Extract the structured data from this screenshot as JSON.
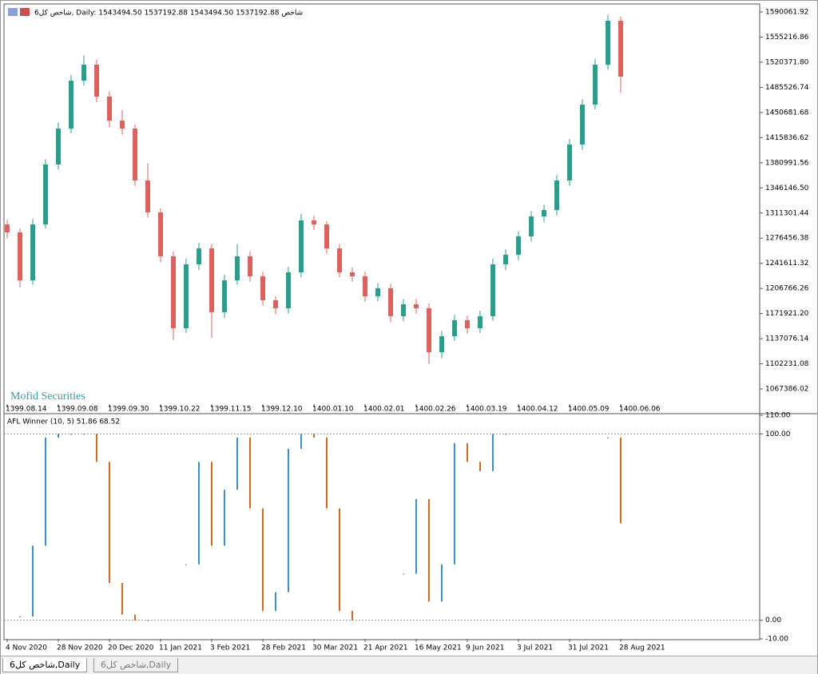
{
  "chart_data": [
    {
      "type": "candlestick",
      "title": "6شاخص کل, Daily:  1543494.50 1537192.88 1543494.50 1537192.88  شاخص",
      "annotation": "Mofid Securities",
      "up_color": "#26a08a",
      "down_color": "#e0605e",
      "categories": [
        "1399.08.14",
        null,
        null,
        null,
        "1399.09.08",
        null,
        null,
        null,
        "1399.09.30",
        null,
        null,
        null,
        "1399.10.22",
        null,
        null,
        null,
        "1399.11.15",
        null,
        null,
        null,
        "1399.12.10",
        null,
        null,
        null,
        "1400.01.10",
        null,
        null,
        null,
        "1400.02.01",
        null,
        null,
        null,
        "1400.02.26",
        null,
        null,
        null,
        "1400.03.19",
        null,
        null,
        null,
        "1400.04.12",
        null,
        null,
        null,
        "1400.05.09",
        null,
        null,
        null,
        "1400.06.06"
      ],
      "open": [
        1295500,
        1284500,
        1218000,
        1295500,
        1378600,
        1428400,
        1494800,
        1517000,
        1472700,
        1439500,
        1428400,
        1356400,
        1312200,
        1251300,
        1151600,
        1240200,
        1262300,
        1173800,
        1218000,
        1251300,
        1223600,
        1190400,
        1179300,
        1229100,
        1301100,
        1295500,
        1262300,
        1229100,
        1223600,
        1195900,
        1207000,
        1168200,
        1184800,
        1179300,
        1118400,
        1140500,
        1162700,
        1151600,
        1168200,
        1240200,
        1253500,
        1278900,
        1306600,
        1315500,
        1356400,
        1406300,
        1461600,
        1517000,
        1577900
      ],
      "high": [
        1302000,
        1290000,
        1303000,
        1386000,
        1437000,
        1503000,
        1530000,
        1524000,
        1480000,
        1454000,
        1434000,
        1380000,
        1318000,
        1258000,
        1248000,
        1270000,
        1268000,
        1226000,
        1268000,
        1258000,
        1230000,
        1196000,
        1237000,
        1310000,
        1308000,
        1300000,
        1268000,
        1236000,
        1230000,
        1214000,
        1213000,
        1192000,
        1192000,
        1186000,
        1148000,
        1170000,
        1169000,
        1176000,
        1248000,
        1261000,
        1286000,
        1314000,
        1323000,
        1364000,
        1414000,
        1469000,
        1525000,
        1586000,
        1584000
      ],
      "low": [
        1276000,
        1208000,
        1212000,
        1290000,
        1372000,
        1422000,
        1488000,
        1465000,
        1430000,
        1420000,
        1349000,
        1305000,
        1243000,
        1135000,
        1145000,
        1232000,
        1138000,
        1166000,
        1212000,
        1216000,
        1183000,
        1171000,
        1172000,
        1222000,
        1288000,
        1255000,
        1222000,
        1216000,
        1188000,
        1189000,
        1160000,
        1161000,
        1172000,
        1102000,
        1110000,
        1134000,
        1144000,
        1145000,
        1162000,
        1232000,
        1246000,
        1272000,
        1299000,
        1308000,
        1349000,
        1399000,
        1455000,
        1510000,
        1478000
      ],
      "close": [
        1284500,
        1218000,
        1295500,
        1378600,
        1428400,
        1494800,
        1517000,
        1472700,
        1439500,
        1428400,
        1356400,
        1312200,
        1251300,
        1151600,
        1240200,
        1262300,
        1173800,
        1218000,
        1251300,
        1223600,
        1190400,
        1179300,
        1229100,
        1301100,
        1295500,
        1262300,
        1229100,
        1223600,
        1195900,
        1207000,
        1168200,
        1184800,
        1179300,
        1118400,
        1140500,
        1162700,
        1151600,
        1168200,
        1240200,
        1253500,
        1278900,
        1306600,
        1315500,
        1356400,
        1406300,
        1461600,
        1517000,
        1577900,
        1500400
      ],
      "ylim": [
        1046427,
        1601134
      ],
      "yticks": [
        1590061.92,
        1555216.86,
        {
          "value": 1520371.8,
          "label": "1520371.80"
        },
        1485526.74,
        1450681.68,
        1415836.62,
        1380991.56,
        {
          "value": 1346146.5,
          "label": "1346146.50"
        },
        1311301.44,
        1276456.38,
        1241611.32,
        1206766.26,
        {
          "value": 1171921.2,
          "label": "1171921.20"
        },
        1137076.14,
        1102231.08,
        1067386.02
      ]
    },
    {
      "type": "oscillator",
      "title": "AFL Winner (10, 5) 51.86 68.52",
      "up_color": "#3b8fd0",
      "down_color": "#e0661e",
      "categories": [
        "4 Nov 2020",
        null,
        null,
        null,
        "28 Nov 2020",
        null,
        null,
        null,
        "20 Dec 2020",
        null,
        null,
        null,
        "11 Jan 2021",
        null,
        null,
        null,
        "3 Feb 2021",
        null,
        null,
        null,
        "28 Feb 2021",
        null,
        null,
        null,
        "30 Mar 2021",
        null,
        null,
        null,
        "21 Apr 2021",
        null,
        null,
        null,
        "16 May 2021",
        null,
        null,
        null,
        "9 Jun 2021",
        null,
        null,
        null,
        "3 Jul 2021",
        null,
        null,
        null,
        "31 Jul 2021",
        null,
        null,
        null,
        "28 Aug 2021"
      ],
      "values": [
        null,
        2,
        40,
        98,
        100,
        100,
        100,
        85,
        20,
        3,
        0,
        0,
        null,
        null,
        30,
        85,
        40,
        70,
        98,
        60,
        5,
        15,
        92,
        100,
        98,
        60,
        5,
        0,
        null,
        null,
        null,
        25,
        65,
        10,
        30,
        95,
        85,
        80,
        100,
        100,
        null,
        null,
        null,
        null,
        null,
        null,
        null,
        98,
        52
      ],
      "ylim": [
        -10,
        110
      ],
      "yticks": [
        {
          "value": 110,
          "label": "110.00"
        },
        {
          "value": 100,
          "label": "100.00"
        },
        {
          "value": 0,
          "label": "0.00"
        },
        {
          "value": -10,
          "label": "-10.00"
        }
      ],
      "levels": [
        100,
        0
      ]
    }
  ],
  "tabs": [
    "6شاخص کل,Daily",
    "6شاخص کل,Daily"
  ]
}
